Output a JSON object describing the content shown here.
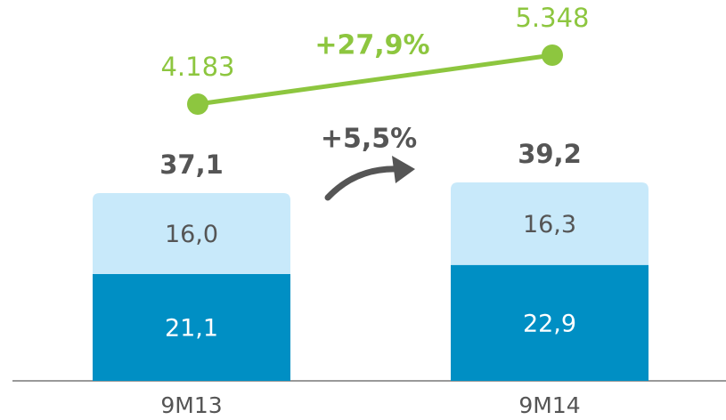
{
  "chart_data": {
    "type": "bar",
    "stacked": true,
    "categories": [
      "9M13",
      "9M14"
    ],
    "series": [
      {
        "color": "#008fc4",
        "values": [
          21.1,
          22.9
        ],
        "value_labels": [
          "21,1",
          "22,9"
        ]
      },
      {
        "color": "#c8e9fa",
        "values": [
          16.0,
          16.3
        ],
        "value_labels": [
          "16,0",
          "16,3"
        ]
      }
    ],
    "totals": [
      37.1,
      39.2
    ],
    "total_labels": [
      "37,1",
      "39,2"
    ],
    "line": {
      "type": "line",
      "axis": "y2",
      "color": "#8dc63f",
      "values": [
        4183,
        5348
      ],
      "value_labels": [
        "4.183",
        "5.348"
      ]
    },
    "annotations": [
      "+27,9%",
      "+5,5%"
    ]
  }
}
